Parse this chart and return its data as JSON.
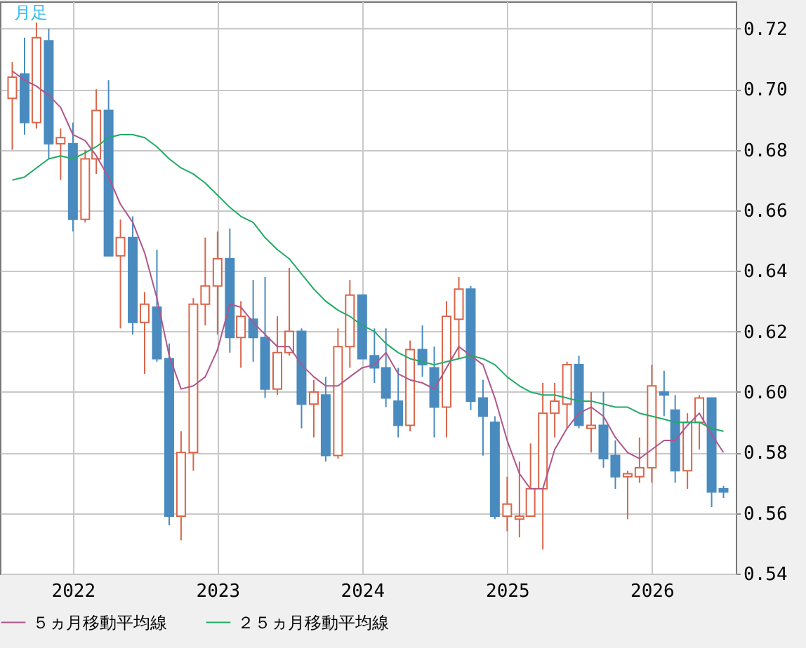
{
  "chart_data": {
    "type": "candlestick",
    "annotations": [
      "月足"
    ],
    "x": [
      "2021-08",
      "2021-09",
      "2021-10",
      "2021-11",
      "2021-12",
      "2022-01",
      "2022-02",
      "2022-03",
      "2022-04",
      "2022-05",
      "2022-06",
      "2022-07",
      "2022-08",
      "2022-09",
      "2022-10",
      "2022-11",
      "2022-12",
      "2023-01",
      "2023-02",
      "2023-03",
      "2023-04",
      "2023-05",
      "2023-06",
      "2023-07",
      "2023-08",
      "2023-09",
      "2023-10",
      "2023-11",
      "2023-12",
      "2024-01",
      "2024-02",
      "2024-03",
      "2024-04",
      "2024-05",
      "2024-06",
      "2024-07",
      "2024-08",
      "2024-09",
      "2024-10",
      "2024-11",
      "2024-12",
      "2025-01",
      "2025-02",
      "2025-03",
      "2025-04",
      "2025-05",
      "2025-06",
      "2025-07",
      "2025-08",
      "2025-09",
      "2025-10",
      "2025-11",
      "2025-12",
      "2026-01",
      "2026-02",
      "2026-03",
      "2026-04",
      "2026-05",
      "2026-06",
      "2026-07"
    ],
    "ohlc": [
      [
        0.697,
        0.709,
        0.68,
        0.704
      ],
      [
        0.705,
        0.717,
        0.685,
        0.689
      ],
      [
        0.689,
        0.722,
        0.687,
        0.717
      ],
      [
        0.716,
        0.72,
        0.677,
        0.682
      ],
      [
        0.682,
        0.687,
        0.67,
        0.684
      ],
      [
        0.682,
        0.689,
        0.653,
        0.657
      ],
      [
        0.657,
        0.68,
        0.656,
        0.677
      ],
      [
        0.677,
        0.7,
        0.672,
        0.693
      ],
      [
        0.693,
        0.703,
        0.645,
        0.645
      ],
      [
        0.645,
        0.657,
        0.621,
        0.651
      ],
      [
        0.651,
        0.658,
        0.619,
        0.623
      ],
      [
        0.623,
        0.633,
        0.606,
        0.629
      ],
      [
        0.628,
        0.647,
        0.61,
        0.611
      ],
      [
        0.611,
        0.616,
        0.556,
        0.559
      ],
      [
        0.559,
        0.587,
        0.551,
        0.58
      ],
      [
        0.58,
        0.631,
        0.574,
        0.629
      ],
      [
        0.629,
        0.651,
        0.622,
        0.635
      ],
      [
        0.635,
        0.653,
        0.619,
        0.644
      ],
      [
        0.644,
        0.654,
        0.613,
        0.618
      ],
      [
        0.618,
        0.63,
        0.608,
        0.625
      ],
      [
        0.624,
        0.637,
        0.61,
        0.618
      ],
      [
        0.618,
        0.638,
        0.598,
        0.601
      ],
      [
        0.601,
        0.625,
        0.599,
        0.613
      ],
      [
        0.613,
        0.641,
        0.612,
        0.62
      ],
      [
        0.62,
        0.621,
        0.588,
        0.596
      ],
      [
        0.596,
        0.604,
        0.585,
        0.6
      ],
      [
        0.599,
        0.605,
        0.577,
        0.579
      ],
      [
        0.579,
        0.621,
        0.578,
        0.615
      ],
      [
        0.615,
        0.637,
        0.608,
        0.632
      ],
      [
        0.632,
        0.632,
        0.611,
        0.611
      ],
      [
        0.612,
        0.621,
        0.603,
        0.608
      ],
      [
        0.608,
        0.621,
        0.595,
        0.598
      ],
      [
        0.597,
        0.608,
        0.585,
        0.589
      ],
      [
        0.589,
        0.617,
        0.587,
        0.614
      ],
      [
        0.614,
        0.622,
        0.605,
        0.609
      ],
      [
        0.608,
        0.615,
        0.585,
        0.595
      ],
      [
        0.595,
        0.63,
        0.585,
        0.625
      ],
      [
        0.624,
        0.638,
        0.611,
        0.634
      ],
      [
        0.634,
        0.635,
        0.594,
        0.597
      ],
      [
        0.598,
        0.604,
        0.579,
        0.592
      ],
      [
        0.59,
        0.592,
        0.558,
        0.559
      ],
      [
        0.559,
        0.572,
        0.554,
        0.563
      ],
      [
        0.558,
        0.577,
        0.552,
        0.559
      ],
      [
        0.559,
        0.583,
        0.559,
        0.568
      ],
      [
        0.568,
        0.603,
        0.548,
        0.593
      ],
      [
        0.593,
        0.603,
        0.585,
        0.597
      ],
      [
        0.596,
        0.61,
        0.588,
        0.609
      ],
      [
        0.609,
        0.612,
        0.588,
        0.589
      ],
      [
        0.588,
        0.6,
        0.58,
        0.589
      ],
      [
        0.589,
        0.6,
        0.575,
        0.578
      ],
      [
        0.579,
        0.584,
        0.568,
        0.572
      ],
      [
        0.572,
        0.574,
        0.558,
        0.573
      ],
      [
        0.572,
        0.585,
        0.57,
        0.575
      ],
      [
        0.575,
        0.609,
        0.57,
        0.602
      ],
      [
        0.6,
        0.607,
        0.592,
        0.599
      ],
      [
        0.594,
        0.599,
        0.57,
        0.574
      ],
      [
        0.574,
        0.593,
        0.568,
        0.59
      ],
      [
        0.59,
        0.599,
        0.581,
        0.598
      ],
      [
        0.598,
        0.598,
        0.562,
        0.567
      ],
      [
        0.568,
        0.569,
        0.565,
        0.567
      ]
    ],
    "colors": [
      "#d9664a",
      "#4a8bbf",
      "#d9664a",
      "#4a8bbf",
      "#d9664a",
      "#4a8bbf",
      "#d9664a",
      "#d9664a",
      "#4a8bbf",
      "#d9664a",
      "#4a8bbf",
      "#d9664a",
      "#4a8bbf",
      "#4a8bbf",
      "#d9664a",
      "#d9664a",
      "#d9664a",
      "#d9664a",
      "#4a8bbf",
      "#d9664a",
      "#4a8bbf",
      "#4a8bbf",
      "#d9664a",
      "#d9664a",
      "#4a8bbf",
      "#d9664a",
      "#4a8bbf",
      "#d9664a",
      "#d9664a",
      "#4a8bbf",
      "#4a8bbf",
      "#4a8bbf",
      "#4a8bbf",
      "#d9664a",
      "#4a8bbf",
      "#4a8bbf",
      "#d9664a",
      "#d9664a",
      "#4a8bbf",
      "#4a8bbf",
      "#4a8bbf",
      "#d9664a",
      "#d9664a",
      "#d9664a",
      "#d9664a",
      "#d9664a",
      "#d9664a",
      "#4a8bbf",
      "#d9664a",
      "#4a8bbf",
      "#4a8bbf",
      "#d9664a",
      "#d9664a",
      "#d9664a",
      "#4a8bbf",
      "#4a8bbf",
      "#d9664a",
      "#d9664a",
      "#4a8bbf",
      "#4a8bbf"
    ],
    "series": [
      {
        "name": "５ヵ月移動平均線",
        "type": "line",
        "color": "#b0568a",
        "values": [
          0.706,
          0.703,
          0.701,
          0.698,
          0.694,
          0.685,
          0.683,
          0.678,
          0.671,
          0.662,
          0.656,
          0.646,
          0.631,
          0.612,
          0.601,
          0.602,
          0.605,
          0.614,
          0.629,
          0.628,
          0.623,
          0.619,
          0.615,
          0.615,
          0.609,
          0.605,
          0.602,
          0.602,
          0.605,
          0.608,
          0.609,
          0.613,
          0.606,
          0.604,
          0.603,
          0.601,
          0.608,
          0.615,
          0.612,
          0.609,
          0.598,
          0.584,
          0.573,
          0.568,
          0.568,
          0.581,
          0.588,
          0.593,
          0.595,
          0.592,
          0.585,
          0.58,
          0.578,
          0.581,
          0.584,
          0.584,
          0.589,
          0.593,
          0.586,
          0.58
        ]
      },
      {
        "name": "２５ヵ月移動平均線",
        "type": "line",
        "color": "#22aa66",
        "values": [
          0.67,
          0.671,
          0.674,
          0.677,
          0.678,
          0.677,
          0.679,
          0.681,
          0.684,
          0.685,
          0.685,
          0.684,
          0.681,
          0.677,
          0.674,
          0.672,
          0.669,
          0.665,
          0.661,
          0.658,
          0.656,
          0.651,
          0.647,
          0.644,
          0.639,
          0.634,
          0.63,
          0.627,
          0.625,
          0.622,
          0.62,
          0.616,
          0.613,
          0.611,
          0.61,
          0.609,
          0.61,
          0.611,
          0.612,
          0.611,
          0.609,
          0.605,
          0.602,
          0.6,
          0.599,
          0.599,
          0.598,
          0.597,
          0.597,
          0.596,
          0.595,
          0.595,
          0.593,
          0.592,
          0.591,
          0.59,
          0.59,
          0.59,
          0.588,
          0.587
        ]
      }
    ],
    "xlim": [
      "2021-07",
      "2026-08"
    ],
    "xticks": [
      "2022",
      "2023",
      "2024",
      "2025",
      "2026"
    ],
    "ylim": [
      0.54,
      0.729
    ],
    "yticks": [
      0.54,
      0.56,
      0.58,
      {
        "value": 0.6,
        "label": "0.60"
      },
      0.62,
      0.64,
      0.66,
      0.68,
      {
        "value": 0.7,
        "label": "0.70"
      },
      0.72
    ],
    "grid": true,
    "legend": "bottom"
  }
}
